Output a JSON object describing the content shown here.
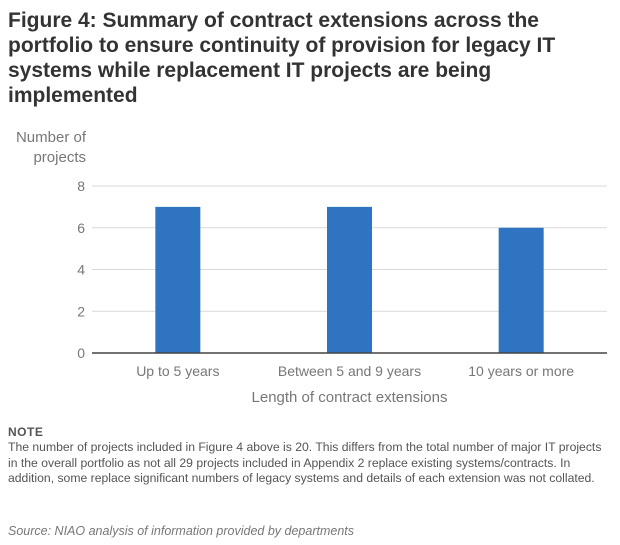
{
  "title": "Figure 4: Summary of contract extensions across the portfolio to ensure continuity of provision for legacy IT systems while replacement IT projects are being implemented",
  "note_heading": "NOTE",
  "note_text": "The number of projects included in Figure 4 above is 20.  This differs from the total number of major IT projects in the overall portfolio as not all 29 projects included in Appendix 2 replace existing systems/contracts.  In addition, some replace significant numbers of legacy systems and details of each extension was not collated.",
  "source": "Source:  NIAO analysis of information provided by departments",
  "colors": {
    "bar": "#2f74c0",
    "grid": "#d9d9d9",
    "axis": "#444444",
    "text": "#777777"
  },
  "chart_data": {
    "type": "bar",
    "categories": [
      "Up to 5 years",
      "Between 5 and 9 years",
      "10 years or more"
    ],
    "values": [
      7,
      7,
      6
    ],
    "ylabel": "Number of projects",
    "xlabel": "Length of contract extensions",
    "ylim": [
      0,
      8
    ],
    "yticks": [
      0,
      2,
      4,
      6,
      8
    ],
    "grid": true
  }
}
